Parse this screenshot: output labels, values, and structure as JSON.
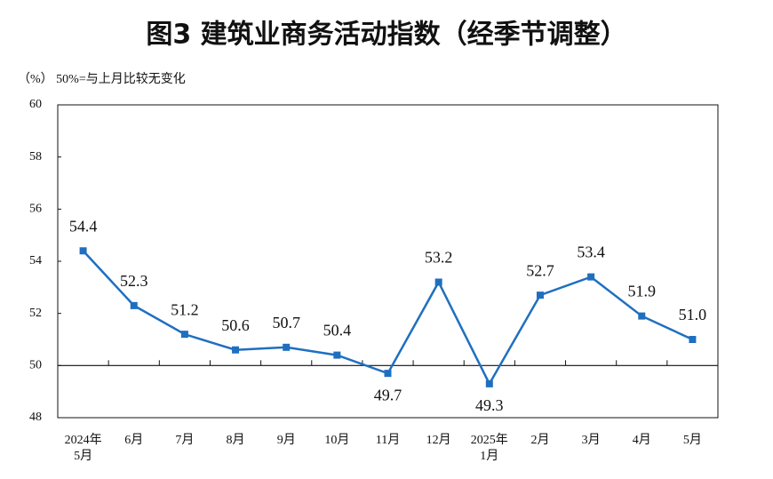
{
  "chart_data": {
    "type": "line",
    "title": "图3 建筑业商务活动指数（经季节调整）",
    "subtitle": "（%） 50%=与上月比较无变化",
    "categories": [
      "2024年\n5月",
      "6月",
      "7月",
      "8月",
      "9月",
      "10月",
      "11月",
      "12月",
      "2025年\n1月",
      "2月",
      "3月",
      "4月",
      "5月"
    ],
    "values": [
      54.4,
      52.3,
      51.2,
      50.6,
      50.7,
      50.4,
      49.7,
      53.2,
      49.3,
      52.7,
      53.4,
      51.9,
      51.0
    ],
    "value_labels": [
      "54.4",
      "52.3",
      "51.2",
      "50.6",
      "50.7",
      "50.4",
      "49.7",
      "53.2",
      "49.3",
      "52.7",
      "53.4",
      "51.9",
      "51.0"
    ],
    "color": "#1f6fc0",
    "ylim": [
      48,
      60
    ],
    "yticks": [
      48,
      50,
      52,
      54,
      56,
      58,
      60
    ],
    "reference_line": 50
  }
}
